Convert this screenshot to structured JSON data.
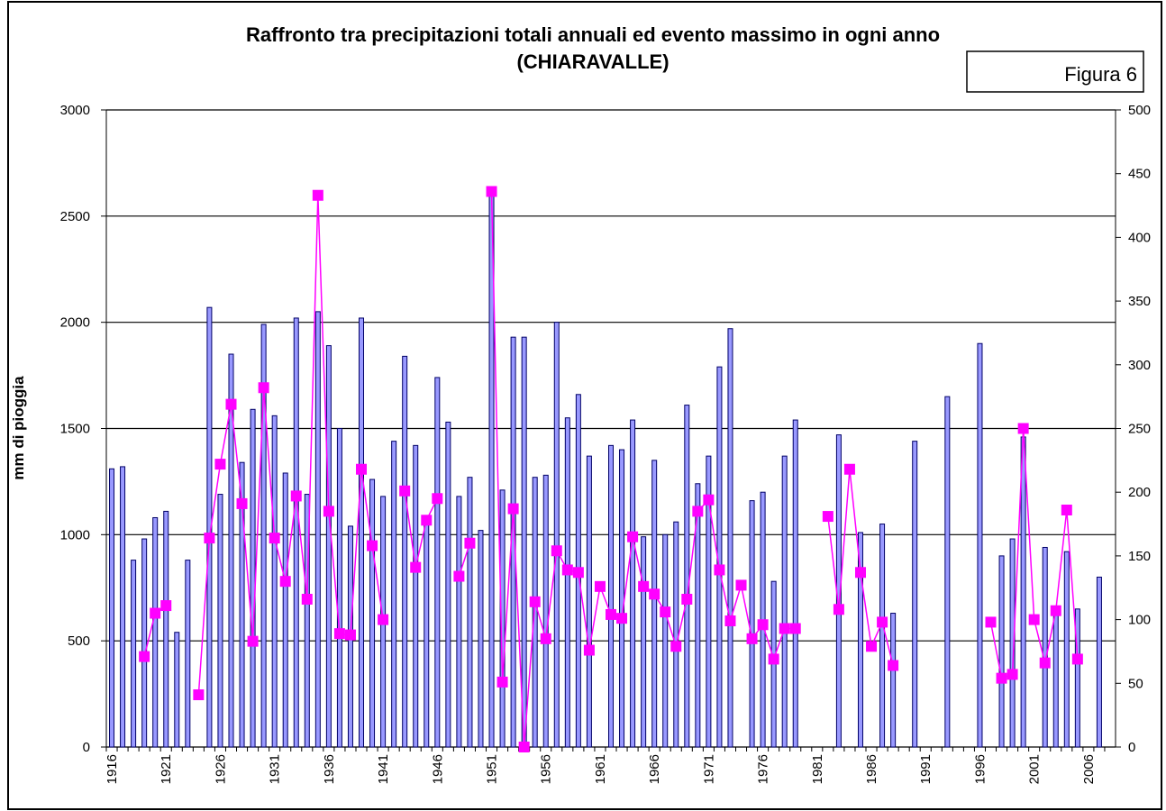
{
  "chart_data": {
    "type": "bar_line",
    "title": "Raffronto tra precipitazioni totali annuali ed evento massimo in ogni anno",
    "subtitle": "(CHIARAVALLE)",
    "annotation": "Figura 6",
    "ylabel": "mm  di pioggia",
    "categories": [
      "1916",
      null,
      null,
      null,
      null,
      "1921",
      null,
      null,
      null,
      null,
      "1926",
      null,
      null,
      null,
      null,
      "1931",
      null,
      null,
      null,
      null,
      "1936",
      null,
      null,
      null,
      null,
      "1941",
      null,
      null,
      null,
      null,
      "1946",
      null,
      null,
      null,
      null,
      "1951",
      null,
      null,
      null,
      null,
      "1956",
      null,
      null,
      null,
      null,
      "1961",
      null,
      null,
      null,
      null,
      "1966",
      null,
      null,
      null,
      null,
      "1971",
      null,
      null,
      null,
      null,
      "1976",
      null,
      null,
      null,
      null,
      "1981",
      null,
      null,
      null,
      null,
      "1986",
      null,
      null,
      null,
      null,
      "1991",
      null,
      null,
      null,
      null,
      "1996",
      null,
      null,
      null,
      null,
      "2001",
      null,
      null,
      null,
      null,
      "2006",
      null,
      null
    ],
    "series": [
      {
        "kind": "bar",
        "color": "#9999ff",
        "values": [
          1310,
          1320,
          880,
          980,
          1080,
          1110,
          540,
          880,
          null,
          2070,
          1190,
          1850,
          1340,
          1590,
          1990,
          1560,
          1290,
          2020,
          1190,
          2050,
          1890,
          1500,
          1040,
          2020,
          1260,
          1180,
          1440,
          1840,
          1420,
          1080,
          1740,
          1530,
          1180,
          1270,
          1020,
          2630,
          1210,
          1930,
          1930,
          1270,
          1280,
          2000,
          1550,
          1660,
          1370,
          null,
          1420,
          1400,
          1540,
          990,
          1350,
          1000,
          1060,
          1610,
          1240,
          1370,
          1790,
          1970,
          null,
          1160,
          1200,
          780,
          1370,
          1540,
          null,
          null,
          null,
          1470,
          null,
          1010,
          null,
          1050,
          630,
          null,
          1440,
          null,
          null,
          1650,
          null,
          null,
          1900,
          null,
          900,
          980,
          1460,
          null,
          940,
          640,
          920,
          650,
          null,
          800,
          null
        ]
      },
      {
        "kind": "line",
        "axis": "y2",
        "color": "#ff00ff",
        "values": [
          null,
          null,
          null,
          71,
          105,
          111,
          null,
          null,
          41,
          164,
          222,
          269,
          191,
          83,
          282,
          164,
          130,
          197,
          116,
          433,
          185,
          89,
          88,
          218,
          158,
          100,
          null,
          201,
          141,
          178,
          195,
          null,
          134,
          160,
          null,
          436,
          51,
          187,
          0,
          114,
          85,
          154,
          139,
          137,
          76,
          126,
          104,
          101,
          165,
          126,
          120,
          106,
          79,
          116,
          185,
          194,
          139,
          99,
          127,
          85,
          96,
          69,
          93,
          93,
          null,
          null,
          181,
          108,
          218,
          137,
          79,
          98,
          64,
          null,
          null,
          null,
          null,
          null,
          null,
          null,
          null,
          98,
          54,
          57,
          250,
          100,
          66,
          107,
          186,
          69,
          null,
          null,
          null
        ]
      }
    ],
    "ylim": [
      0,
      3000
    ],
    "yticks": [
      0,
      500,
      1000,
      1500,
      2000,
      2500,
      3000
    ],
    "y2lim": [
      0,
      500
    ],
    "y2ticks": [
      0,
      50,
      100,
      150,
      200,
      250,
      300,
      350,
      400,
      450,
      500
    ],
    "grid": true
  }
}
